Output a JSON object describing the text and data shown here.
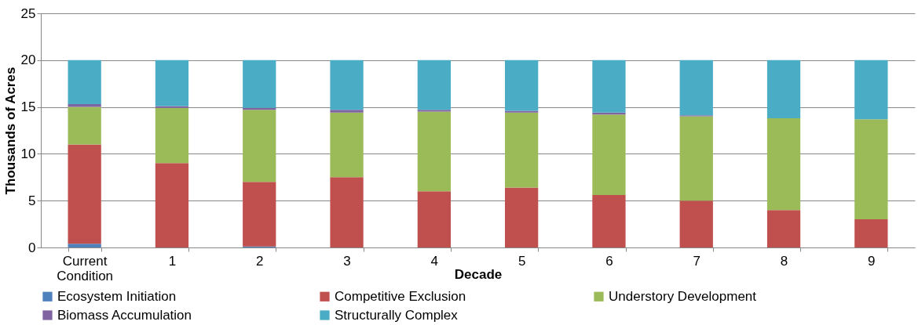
{
  "chart_data": {
    "type": "bar",
    "stacked": true,
    "xlabel": "Decade",
    "ylabel": "Thousands of Acres",
    "categories": [
      "Current Condition",
      "1",
      "2",
      "3",
      "4",
      "5",
      "6",
      "7",
      "8",
      "9"
    ],
    "series": [
      {
        "name": "Ecosystem Initiation",
        "color": "#4f81bd",
        "values": [
          0.4,
          0,
          0.1,
          0,
          0,
          0,
          0,
          0,
          0,
          0
        ]
      },
      {
        "name": "Competitive Exclusion",
        "color": "#c0504d",
        "values": [
          10.6,
          9,
          6.9,
          7.5,
          6,
          6.4,
          5.6,
          5,
          4,
          3
        ]
      },
      {
        "name": "Understory Development",
        "color": "#9bbb59",
        "values": [
          4,
          5.9,
          7.7,
          6.9,
          8.5,
          8,
          8.6,
          9,
          9.8,
          10.7
        ]
      },
      {
        "name": "Biomass Accumulation",
        "color": "#8064a2",
        "values": [
          0.3,
          0.2,
          0.2,
          0.3,
          0.2,
          0.2,
          0.2,
          0.1,
          0,
          0
        ]
      },
      {
        "name": "Structurally Complex",
        "color": "#4bacc6",
        "values": [
          4.7,
          4.9,
          5.1,
          5.3,
          5.3,
          5.4,
          5.6,
          5.9,
          6.2,
          6.3
        ]
      }
    ],
    "ylim": [
      0,
      25
    ],
    "yticks": [
      0,
      5,
      10,
      15,
      20,
      25
    ],
    "grid": "y",
    "legend": "bottom"
  }
}
